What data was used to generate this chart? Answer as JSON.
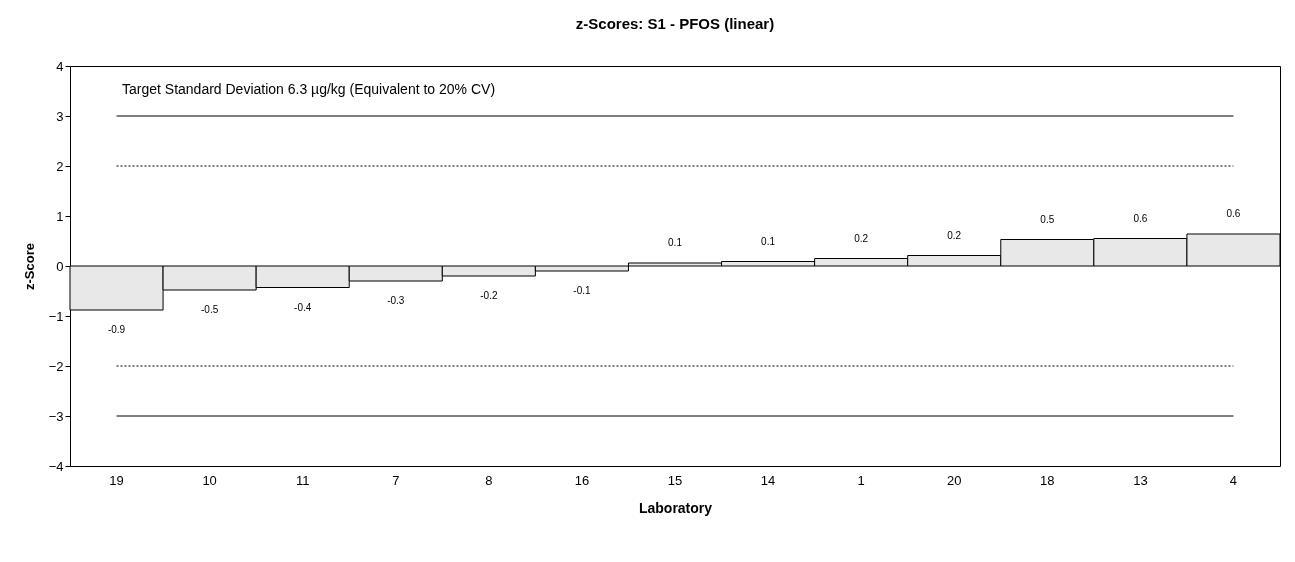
{
  "chart_data": {
    "type": "bar",
    "title": "z-Scores: S1 - PFOS (linear)",
    "xlabel": "Laboratory",
    "ylabel": "z-Score",
    "categories": [
      "19",
      "10",
      "11",
      "7",
      "8",
      "16",
      "15",
      "14",
      "1",
      "20",
      "18",
      "13",
      "4"
    ],
    "values": [
      -0.88,
      -0.48,
      -0.43,
      -0.3,
      -0.2,
      -0.1,
      0.06,
      0.09,
      0.15,
      0.21,
      0.53,
      0.55,
      0.64
    ],
    "value_labels": [
      "-0.9",
      "-0.5",
      "-0.4",
      "-0.3",
      "-0.2",
      "-0.1",
      "0.1",
      "0.1",
      "0.2",
      "0.2",
      "0.5",
      "0.6",
      "0.6"
    ],
    "color": "#e8e8e8",
    "ylim": [
      -4,
      4
    ],
    "yticks": [
      -4,
      -3,
      -2,
      -1,
      0,
      1,
      2,
      3,
      4
    ],
    "grid": false,
    "ref_lines": [
      {
        "axis": "y",
        "value": 3,
        "color": "#000000",
        "line_style": "solid"
      },
      {
        "axis": "y",
        "value": 2,
        "color": "#000000",
        "line_style": "dotted"
      },
      {
        "axis": "y",
        "value": -2,
        "color": "#000000",
        "line_style": "dotted"
      },
      {
        "axis": "y",
        "value": -3,
        "color": "#000000",
        "line_style": "solid"
      }
    ],
    "annotations": [
      "Target Standard Deviation 6.3 µg/kg  (Equivalent to 20% CV)"
    ]
  }
}
